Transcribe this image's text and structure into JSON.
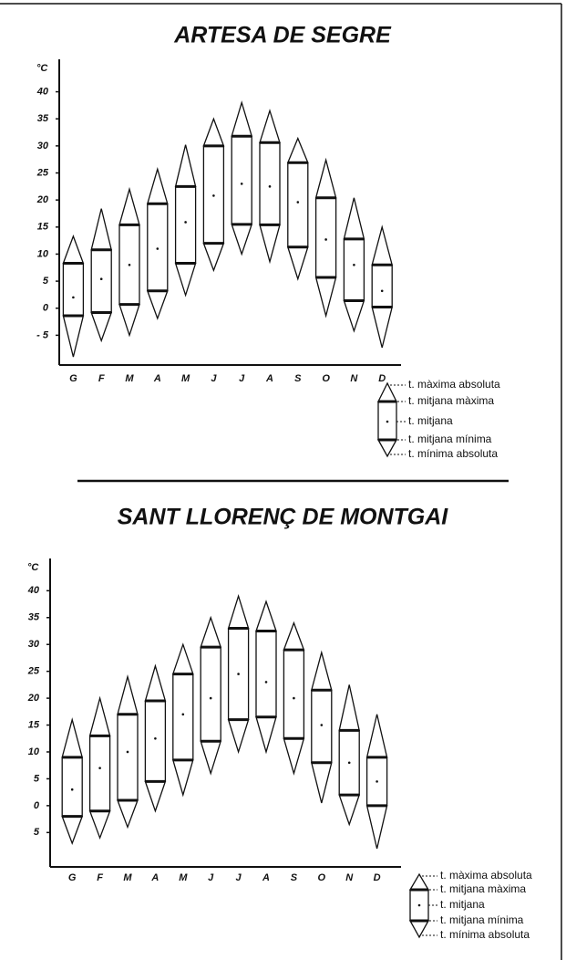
{
  "chart_data": [
    {
      "type": "range",
      "title": "ARTESA DE SEGRE",
      "y_label": "°C",
      "categories": [
        "G",
        "F",
        "M",
        "A",
        "M",
        "J",
        "J",
        "A",
        "S",
        "O",
        "N",
        "D"
      ],
      "ylim": [
        -10.5,
        46
      ],
      "yticks": [
        {
          "value": -5,
          "label": "- 5"
        },
        0,
        5,
        10,
        15,
        20,
        25,
        30,
        35,
        40
      ],
      "color": "#111111",
      "series": [
        {
          "name": "t. màxima absoluta",
          "values": [
            13.3,
            18.4,
            22,
            25.7,
            30.2,
            35,
            38,
            36.5,
            31.4,
            27.4,
            20.4,
            15
          ]
        },
        {
          "name": "t. mitjana màxima",
          "values": [
            8.3,
            10.8,
            15.4,
            19.3,
            22.5,
            30,
            31.8,
            30.6,
            26.9,
            20.4,
            12.8,
            8
          ]
        },
        {
          "name": "t. mitjana",
          "values": [
            2,
            5.4,
            8,
            11,
            15.9,
            20.8,
            23,
            22.5,
            19.6,
            12.7,
            8,
            3.2
          ]
        },
        {
          "name": "t. mitjana mínima",
          "values": [
            -1.4,
            -0.8,
            0.7,
            3.2,
            8.3,
            12,
            15.5,
            15.4,
            11.3,
            5.7,
            1.4,
            0.2
          ]
        },
        {
          "name": "t. mínima absoluta",
          "values": [
            -9,
            -6,
            -5,
            -1.9,
            2.4,
            7,
            10,
            8.6,
            5.4,
            -1.4,
            -4.2,
            -7.3
          ]
        }
      ]
    },
    {
      "type": "range",
      "title": "SANT LLORENÇ DE MONTGAI",
      "y_label": "°C",
      "categories": [
        "G",
        "F",
        "M",
        "A",
        "M",
        "J",
        "J",
        "A",
        "S",
        "O",
        "N",
        "D"
      ],
      "ylim": [
        -11.4,
        46
      ],
      "yticks": [
        {
          "value": -5,
          "label": "5"
        },
        0,
        5,
        10,
        15,
        20,
        25,
        30,
        35,
        40
      ],
      "color": "#111111",
      "series": [
        {
          "name": "t. màxima absoluta",
          "values": [
            16,
            20,
            24,
            26,
            30,
            35,
            39,
            38,
            34,
            28.5,
            22.5,
            17
          ]
        },
        {
          "name": "t. mitjana màxima",
          "values": [
            9,
            13,
            17,
            19.5,
            24.5,
            29.5,
            33,
            32.5,
            29,
            21.5,
            14,
            9
          ]
        },
        {
          "name": "t. mitjana",
          "values": [
            3,
            7,
            10,
            12.5,
            17,
            20,
            24.5,
            23,
            20,
            15,
            8,
            4.5
          ]
        },
        {
          "name": "t. mitjana mínima",
          "values": [
            -2,
            -1,
            1,
            4.5,
            8.5,
            12,
            16,
            16.5,
            12.5,
            8,
            2,
            0
          ]
        },
        {
          "name": "t. mínima absoluta",
          "values": [
            -7,
            -6,
            -4,
            -1,
            2,
            6,
            10,
            10,
            6,
            0.5,
            -3.5,
            -8
          ]
        }
      ]
    }
  ]
}
